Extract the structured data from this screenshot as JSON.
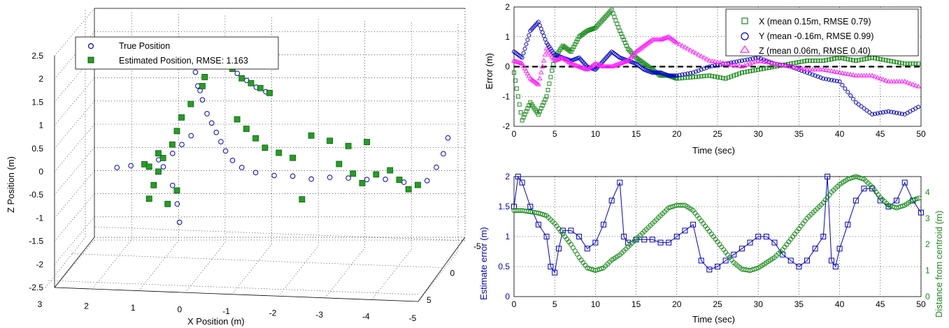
{
  "colors": {
    "blue": "#0000cc",
    "green": "#1a8c1a",
    "magenta": "#ff22ff",
    "black": "#000000"
  },
  "chart_data": [
    {
      "type": "scatter3d",
      "xlabel": "X Position (m)",
      "zlabel": "Z Position (m)",
      "xticks": [
        "3",
        "2",
        "1",
        "0",
        "-1",
        "-2",
        "-3",
        "-4",
        "-5"
      ],
      "yticks": [
        "-5",
        "0",
        "5"
      ],
      "zticks": [
        "2.5",
        "2",
        "1.5",
        "1",
        "0.5",
        "0",
        "-0.5",
        "-1",
        "-1.5",
        "-2",
        "-2.5"
      ],
      "legend": [
        "True Position",
        "Estimated Position, RMSE: 1.163"
      ],
      "grid": true,
      "legend_placement": "top-left",
      "series": [
        {
          "name": "True Position",
          "marker": "circle",
          "points": [
            [
              -1.0,
              0.0,
              1.2
            ],
            [
              -0.8,
              0.1,
              1.3
            ],
            [
              -0.6,
              0.2,
              1.45
            ],
            [
              -0.4,
              0.25,
              1.6
            ],
            [
              -0.2,
              0.3,
              1.8
            ],
            [
              0.0,
              0.3,
              2.0
            ],
            [
              0.2,
              0.3,
              2.1
            ],
            [
              0.35,
              0.3,
              2.05
            ],
            [
              0.45,
              0.3,
              1.85
            ],
            [
              0.5,
              0.3,
              1.6
            ],
            [
              0.45,
              0.3,
              1.3
            ],
            [
              0.35,
              0.3,
              1.0
            ],
            [
              0.25,
              0.3,
              0.7
            ],
            [
              0.15,
              0.3,
              0.5
            ],
            [
              0.05,
              0.3,
              0.3
            ],
            [
              -0.05,
              0.3,
              0.1
            ],
            [
              -0.15,
              0.3,
              -0.1
            ],
            [
              -0.3,
              0.3,
              -0.3
            ],
            [
              -0.5,
              0.3,
              -0.45
            ],
            [
              -0.8,
              0.3,
              -0.55
            ],
            [
              -1.2,
              0.3,
              -0.6
            ],
            [
              -1.6,
              0.3,
              -0.6
            ],
            [
              -2.0,
              0.3,
              -0.65
            ],
            [
              -2.4,
              0.3,
              -0.6
            ],
            [
              -2.8,
              0.3,
              -0.6
            ],
            [
              -3.2,
              0.3,
              -0.62
            ],
            [
              -3.6,
              0.3,
              -0.6
            ],
            [
              -4.0,
              0.3,
              -0.65
            ],
            [
              -4.3,
              0.3,
              -0.7
            ],
            [
              -4.5,
              0.3,
              -0.6
            ],
            [
              -4.7,
              0.3,
              -0.3
            ],
            [
              -4.85,
              0.3,
              0.0
            ],
            [
              -4.95,
              0.3,
              0.35
            ],
            [
              0.4,
              0.3,
              1.2
            ],
            [
              0.3,
              0.3,
              1.5
            ],
            [
              0.5,
              0.3,
              1.75
            ],
            [
              0.6,
              0.2,
              0.2
            ],
            [
              0.8,
              0.2,
              0.0
            ],
            [
              1.0,
              0.2,
              -0.2
            ],
            [
              1.3,
              0.2,
              -0.35
            ],
            [
              1.6,
              0.2,
              -0.45
            ],
            [
              1.9,
              0.2,
              -0.5
            ],
            [
              2.2,
              0.2,
              -0.55
            ],
            [
              1.2,
              0.2,
              -0.5
            ],
            [
              1.0,
              0.2,
              -0.9
            ],
            [
              0.9,
              0.2,
              -1.3
            ],
            [
              0.85,
              0.2,
              -1.7
            ]
          ]
        },
        {
          "name": "Estimated Position, RMSE: 1.163",
          "marker": "square",
          "points": [
            [
              0.5,
              0.3,
              2.0
            ],
            [
              0.4,
              0.3,
              1.8
            ],
            [
              0.3,
              0.3,
              1.5
            ],
            [
              0.35,
              0.3,
              1.3
            ],
            [
              0.2,
              0.3,
              1.9
            ],
            [
              0.1,
              0.3,
              2.05
            ],
            [
              -0.1,
              0.3,
              1.9
            ],
            [
              -0.3,
              0.3,
              1.7
            ],
            [
              -0.5,
              0.3,
              1.5
            ],
            [
              -0.7,
              0.3,
              1.4
            ],
            [
              -0.9,
              0.3,
              1.3
            ],
            [
              -1.1,
              0.3,
              1.2
            ],
            [
              0.6,
              0.3,
              0.9
            ],
            [
              0.8,
              0.3,
              0.6
            ],
            [
              0.9,
              0.3,
              0.3
            ],
            [
              1.0,
              0.3,
              0.0
            ],
            [
              1.2,
              0.3,
              -0.3
            ],
            [
              1.3,
              0.3,
              -0.6
            ],
            [
              1.4,
              0.3,
              -0.9
            ],
            [
              1.5,
              0.3,
              -1.2
            ],
            [
              1.6,
              0.3,
              -0.45
            ],
            [
              -0.4,
              0.3,
              0.6
            ],
            [
              -0.6,
              0.3,
              0.4
            ],
            [
              -0.8,
              0.3,
              0.2
            ],
            [
              -1.0,
              0.3,
              0.0
            ],
            [
              -1.3,
              0.3,
              -0.1
            ],
            [
              -1.6,
              0.3,
              -0.2
            ],
            [
              -2.0,
              0.3,
              0.3
            ],
            [
              -2.4,
              0.3,
              0.2
            ],
            [
              -2.8,
              0.3,
              0.1
            ],
            [
              -3.2,
              0.3,
              0.2
            ],
            [
              -2.6,
              0.3,
              -0.3
            ],
            [
              -2.9,
              0.3,
              -0.5
            ],
            [
              -3.1,
              0.3,
              -0.7
            ],
            [
              -3.4,
              0.3,
              -0.5
            ],
            [
              -3.7,
              0.3,
              -0.4
            ],
            [
              -3.9,
              0.3,
              -0.6
            ],
            [
              -4.1,
              0.3,
              -0.8
            ],
            [
              -4.3,
              0.3,
              -0.7
            ],
            [
              -1.8,
              0.3,
              -1.1
            ],
            [
              0.9,
              0.3,
              -1.0
            ],
            [
              1.1,
              0.3,
              -1.3
            ],
            [
              1.3,
              0.3,
              -0.2
            ],
            [
              1.5,
              0.3,
              -0.5
            ]
          ]
        }
      ]
    },
    {
      "type": "scatter",
      "xlabel": "Time (sec)",
      "ylabel": "Error (m)",
      "xlim": [
        0,
        50
      ],
      "ylim": [
        -2,
        2
      ],
      "xticks": [
        "0",
        "5",
        "10",
        "15",
        "20",
        "25",
        "30",
        "35",
        "40",
        "45",
        "50"
      ],
      "yticks": [
        "-2",
        "-1",
        "0",
        "1",
        "2"
      ],
      "grid": true,
      "legend_placement": "top-right",
      "reference_line": 0,
      "series": [
        {
          "name": "X (mean 0.15m, RMSE 0.79)",
          "marker": "square",
          "x": [
            0,
            1,
            2,
            3,
            4,
            5,
            6,
            7,
            8,
            9,
            10,
            11,
            12,
            13,
            14,
            15,
            16,
            17,
            18,
            19,
            20,
            22,
            24,
            26,
            28,
            30,
            32,
            34,
            36,
            38,
            40,
            42,
            44,
            46,
            48,
            50
          ],
          "y": [
            -0.2,
            -1.8,
            -1.2,
            -1.6,
            -1.0,
            0.3,
            0.7,
            0.5,
            1.0,
            1.2,
            1.3,
            1.6,
            1.9,
            1.2,
            0.6,
            0.3,
            0.1,
            -0.1,
            -0.3,
            -0.3,
            -0.4,
            -0.35,
            -0.3,
            -0.4,
            -0.2,
            -0.1,
            0.0,
            0.1,
            0.2,
            0.2,
            0.3,
            0.2,
            0.3,
            0.2,
            0.1,
            0.1
          ]
        },
        {
          "name": "Y (mean -0.16m, RMSE 0.99)",
          "marker": "circle",
          "x": [
            0,
            1,
            2,
            3,
            4,
            5,
            6,
            7,
            8,
            9,
            10,
            11,
            12,
            13,
            14,
            15,
            16,
            17,
            18,
            19,
            20,
            22,
            24,
            26,
            28,
            30,
            32,
            34,
            36,
            38,
            40,
            42,
            44,
            46,
            48,
            50
          ],
          "y": [
            0.5,
            0.3,
            1.2,
            1.5,
            0.8,
            0.4,
            0.3,
            0.2,
            0.3,
            0.0,
            -0.1,
            0.2,
            0.5,
            0.3,
            0.2,
            0.1,
            -0.1,
            -0.2,
            -0.2,
            -0.3,
            -0.3,
            -0.2,
            0.0,
            0.1,
            0.2,
            0.3,
            0.1,
            0.0,
            -0.2,
            -0.4,
            -0.5,
            -1.2,
            -1.6,
            -1.5,
            -1.6,
            -1.3
          ]
        },
        {
          "name": "Z (mean 0.06m, RMSE 0.40)",
          "marker": "triangle",
          "x": [
            0,
            1,
            2,
            3,
            4,
            5,
            6,
            7,
            8,
            9,
            10,
            11,
            12,
            13,
            14,
            15,
            16,
            17,
            18,
            19,
            20,
            22,
            24,
            26,
            28,
            30,
            32,
            34,
            36,
            38,
            40,
            42,
            44,
            46,
            48,
            50
          ],
          "y": [
            0.2,
            0.1,
            -0.4,
            -0.6,
            0.6,
            0.2,
            0.3,
            0.1,
            0.0,
            -0.1,
            0.1,
            0.0,
            0.0,
            0.1,
            0.2,
            0.5,
            0.7,
            0.9,
            0.9,
            1.0,
            0.8,
            0.5,
            0.2,
            0.1,
            0.0,
            0.2,
            0.1,
            0.0,
            -0.1,
            -0.1,
            -0.2,
            -0.3,
            -0.3,
            -0.5,
            -0.5,
            -0.7
          ]
        }
      ]
    },
    {
      "type": "line",
      "xlabel": "Time (sec)",
      "ylabel": "Estimate error (m)",
      "y2label": "Distance from centroid (m)",
      "xlim": [
        0,
        50
      ],
      "ylim": [
        0,
        2
      ],
      "y2lim": [
        0,
        4.6
      ],
      "xticks": [
        "0",
        "5",
        "10",
        "15",
        "20",
        "25",
        "30",
        "35",
        "40",
        "45",
        "50"
      ],
      "yticks": [
        "0",
        "0.5",
        "1",
        "1.5",
        "2"
      ],
      "y2ticks": [
        "0",
        "1",
        "2",
        "3",
        "4"
      ],
      "grid": true,
      "series": [
        {
          "name": "Estimate error",
          "axis": "left",
          "marker": "square",
          "x": [
            0,
            0.5,
            1,
            2,
            3,
            4,
            4.5,
            5,
            5.5,
            6,
            7,
            8,
            9,
            10,
            11,
            12,
            13,
            13.5,
            14,
            15,
            16,
            17,
            18,
            19,
            20,
            21,
            22,
            23,
            24,
            25,
            26,
            27,
            28,
            29,
            30,
            31,
            32,
            33,
            34,
            35,
            36,
            37,
            38,
            38.5,
            39,
            39.5,
            40,
            41,
            42,
            43,
            44,
            45,
            46,
            47,
            48,
            49,
            50
          ],
          "y": [
            1.5,
            2.0,
            1.9,
            1.5,
            1.2,
            1.0,
            0.5,
            0.4,
            0.8,
            1.1,
            1.1,
            1.0,
            0.8,
            0.9,
            1.2,
            1.6,
            1.9,
            1.0,
            0.9,
            0.95,
            0.95,
            0.95,
            0.9,
            0.9,
            1.0,
            1.1,
            1.2,
            0.6,
            0.45,
            0.5,
            0.6,
            0.7,
            0.8,
            0.9,
            1.0,
            1.0,
            0.9,
            0.7,
            0.6,
            0.5,
            0.6,
            0.8,
            1.0,
            2.0,
            0.6,
            0.5,
            0.8,
            1.2,
            1.6,
            1.8,
            1.8,
            1.6,
            1.5,
            1.6,
            1.9,
            1.6,
            1.4
          ]
        },
        {
          "name": "Distance from centroid",
          "axis": "right",
          "marker": "circle",
          "x": [
            0,
            1,
            2,
            3,
            4,
            5,
            6,
            7,
            8,
            9,
            10,
            11,
            12,
            13,
            14,
            15,
            16,
            17,
            18,
            19,
            20,
            21,
            22,
            23,
            24,
            25,
            26,
            27,
            28,
            29,
            30,
            31,
            32,
            33,
            34,
            35,
            36,
            37,
            38,
            39,
            40,
            41,
            42,
            43,
            44,
            45,
            46,
            47,
            48,
            49,
            50
          ],
          "y": [
            3.3,
            3.3,
            3.25,
            3.2,
            3.1,
            2.8,
            2.4,
            2.0,
            1.5,
            1.1,
            1.0,
            1.1,
            1.4,
            1.6,
            1.9,
            2.2,
            2.5,
            2.8,
            3.1,
            3.4,
            3.5,
            3.5,
            3.3,
            2.9,
            2.5,
            2.1,
            1.7,
            1.3,
            1.05,
            1.0,
            1.1,
            1.3,
            1.5,
            1.8,
            2.2,
            2.6,
            3.0,
            3.3,
            3.6,
            4.0,
            4.3,
            4.5,
            4.6,
            4.5,
            4.2,
            3.8,
            3.5,
            3.4,
            3.5,
            3.7,
            3.8
          ]
        }
      ]
    }
  ]
}
